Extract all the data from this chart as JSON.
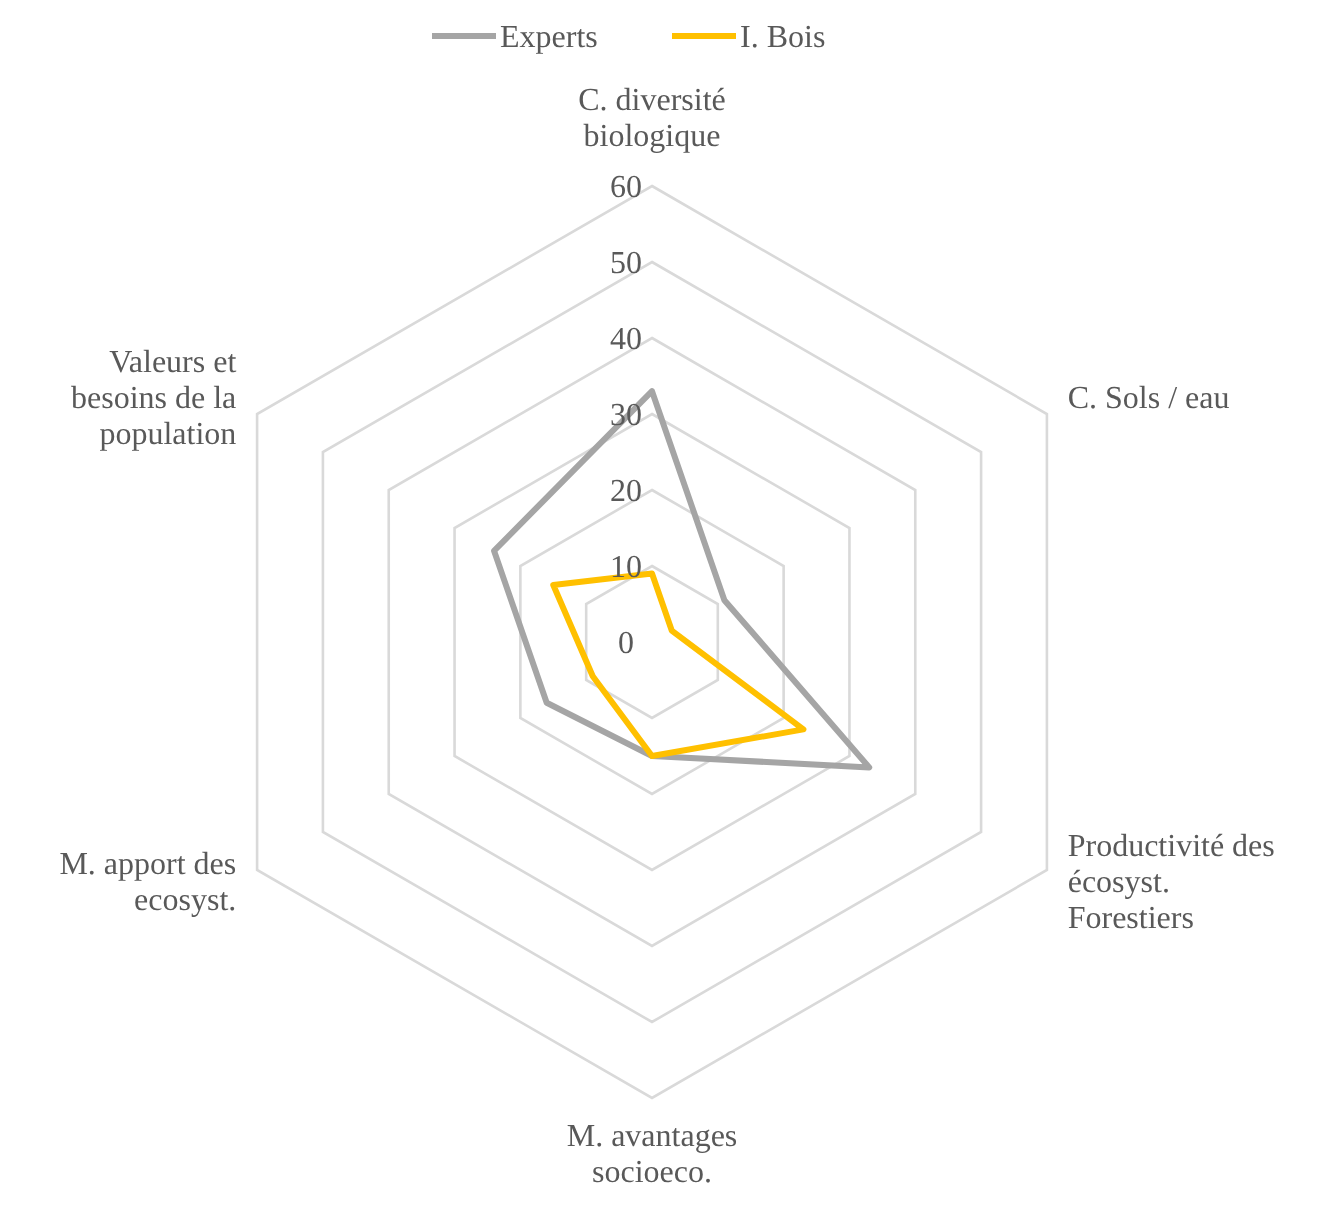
{
  "chart_data": {
    "type": "radar",
    "categories": [
      "C. diversité biologique",
      "C. Sols / eau",
      "Productivité des écosyst. Forestiers",
      "M. avantages socioeco.",
      "M. apport des ecosyst.",
      "Valeurs et besoins de la population"
    ],
    "series": [
      {
        "name": "Experts",
        "color": "#a5a5a5",
        "values": [
          33,
          11,
          33,
          15,
          16,
          24
        ]
      },
      {
        "name": "I. Bois",
        "color": "#ffc000",
        "values": [
          9,
          3,
          23,
          15,
          9,
          15
        ]
      }
    ],
    "ylim": [
      0,
      60
    ],
    "yticks": [
      0,
      10,
      20,
      30,
      40,
      50,
      60
    ],
    "grid": true,
    "legend": "top"
  }
}
